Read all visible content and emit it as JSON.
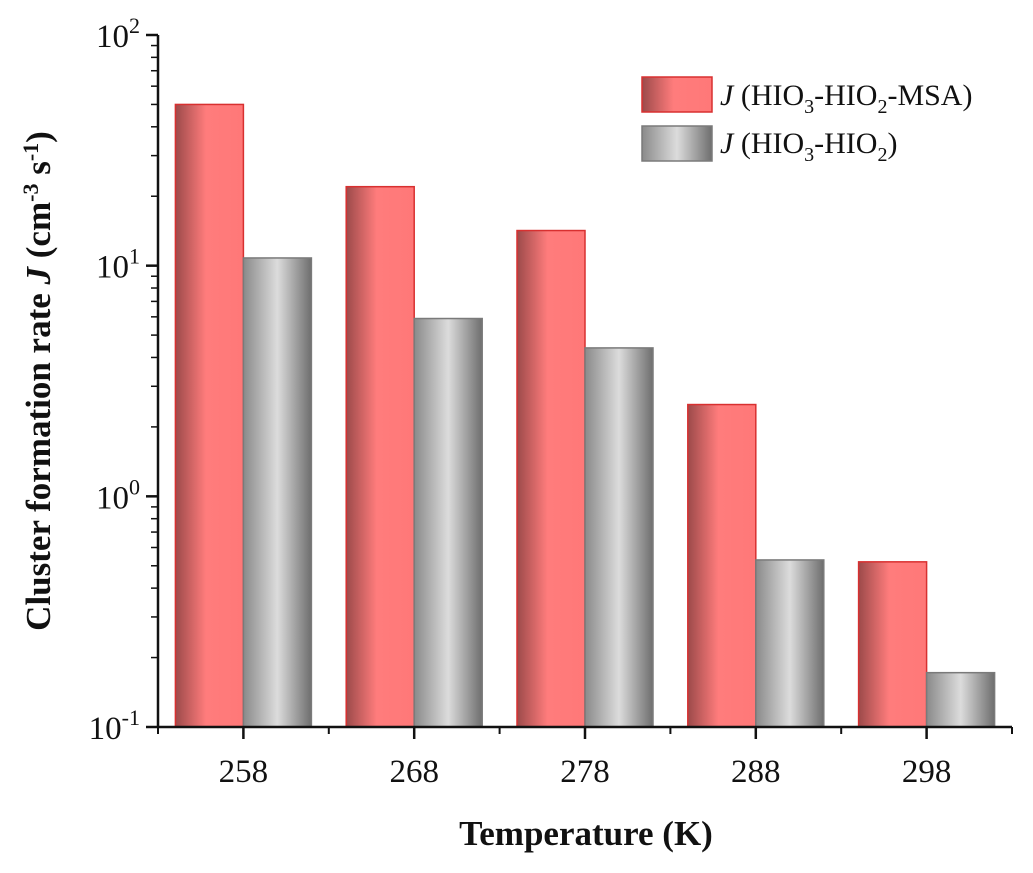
{
  "chart_data": {
    "type": "bar",
    "xlabel": "Temperature (K)",
    "ylabel": "Cluster formation rate J (cm-3 s-1)",
    "yscale": "log",
    "ylim": [
      0.1,
      100
    ],
    "yticks": [
      0.1,
      1,
      10,
      100
    ],
    "categories": [
      "258",
      "268",
      "278",
      "288",
      "298"
    ],
    "series": [
      {
        "name": "J (HIO3-HIO2-MSA)",
        "values": [
          50,
          22,
          14.2,
          2.5,
          0.52
        ],
        "color": "#f57878",
        "edge": "#d83030"
      },
      {
        "name": "J (HIO3-HIO2)",
        "values": [
          10.8,
          5.9,
          4.4,
          0.53,
          0.172
        ],
        "color": "#c4c4c4",
        "edge": "#7a7a7a"
      }
    ],
    "legend_position": "top-right",
    "grid": false
  }
}
